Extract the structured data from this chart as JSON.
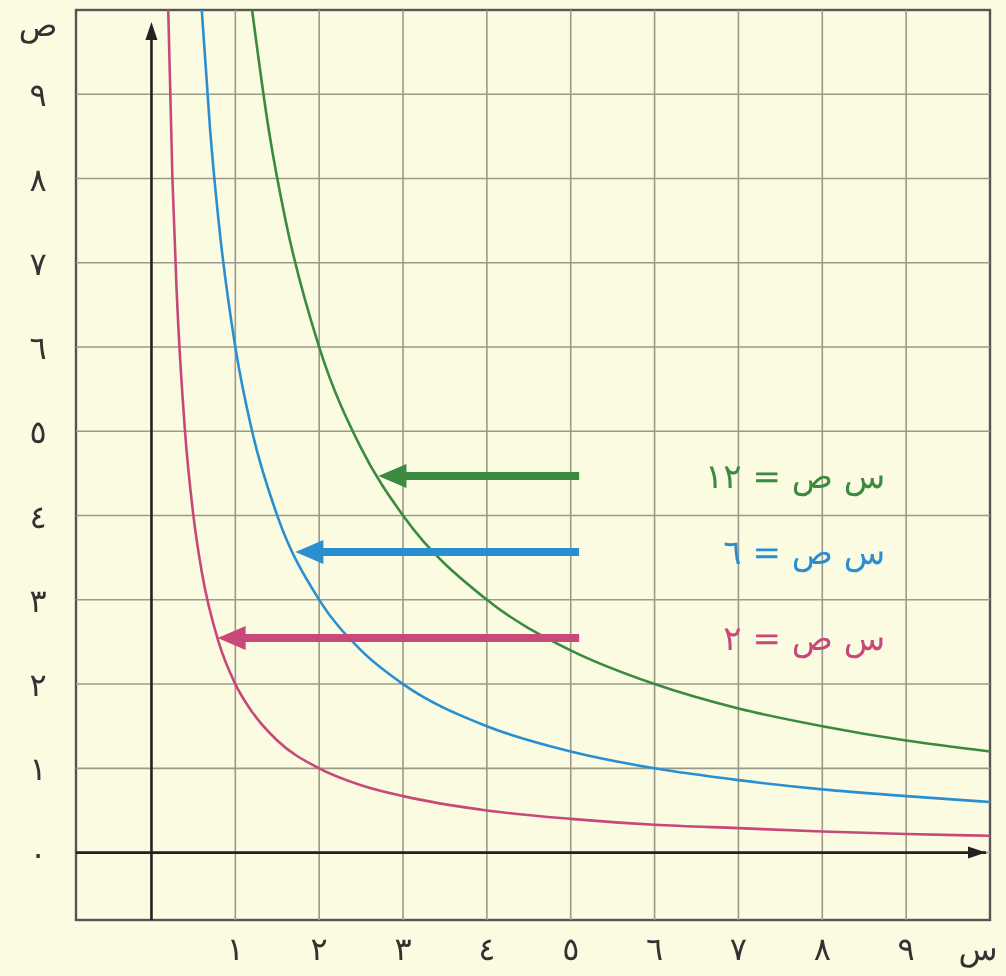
{
  "chart_data": {
    "type": "line",
    "xlabel": "س",
    "ylabel": "ص",
    "xlim": [
      -0.9,
      10
    ],
    "ylim": [
      -0.8,
      10
    ],
    "xticks": [
      {
        "value": 1,
        "label": "١"
      },
      {
        "value": 2,
        "label": "٢"
      },
      {
        "value": 3,
        "label": "٣"
      },
      {
        "value": 4,
        "label": "٤"
      },
      {
        "value": 5,
        "label": "٥"
      },
      {
        "value": 6,
        "label": "٦"
      },
      {
        "value": 7,
        "label": "٧"
      },
      {
        "value": 8,
        "label": "٨"
      },
      {
        "value": 9,
        "label": "٩"
      }
    ],
    "yticks": [
      {
        "value": 0,
        "label": "٠"
      },
      {
        "value": 1,
        "label": "١"
      },
      {
        "value": 2,
        "label": "٢"
      },
      {
        "value": 3,
        "label": "٣"
      },
      {
        "value": 4,
        "label": "٤"
      },
      {
        "value": 5,
        "label": "٥"
      },
      {
        "value": 6,
        "label": "٦"
      },
      {
        "value": 7,
        "label": "٧"
      },
      {
        "value": 8,
        "label": "٨"
      },
      {
        "value": 9,
        "label": "٩"
      }
    ],
    "grid": true,
    "marker": "none",
    "line_style": "solid",
    "series": [
      {
        "color": "#c8487a",
        "x": [
          0.2,
          0.25,
          0.3,
          0.4,
          0.5,
          0.6,
          0.8,
          1,
          1.2,
          1.5,
          2,
          2.5,
          3,
          4,
          5,
          6,
          7,
          8,
          9,
          10
        ],
        "values": [
          10,
          8,
          6.67,
          5,
          4,
          3.33,
          2.5,
          2,
          1.67,
          1.33,
          1,
          0.8,
          0.67,
          0.5,
          0.4,
          0.33,
          0.29,
          0.25,
          0.22,
          0.2
        ]
      },
      {
        "color": "#2a8fd0",
        "x": [
          0.6,
          0.7,
          0.8,
          1,
          1.2,
          1.5,
          2,
          2.5,
          3,
          4,
          5,
          6,
          7,
          8,
          9,
          10
        ],
        "values": [
          10,
          8.57,
          7.5,
          6,
          5,
          4,
          3,
          2.4,
          2,
          1.5,
          1.2,
          1,
          0.86,
          0.75,
          0.67,
          0.6
        ]
      },
      {
        "color": "#3a8a40",
        "x": [
          1.2,
          1.4,
          1.6,
          2,
          2.5,
          3,
          4,
          5,
          6,
          7,
          8,
          9,
          10
        ],
        "values": [
          10,
          8.57,
          7.5,
          6,
          4.8,
          4,
          3,
          2.4,
          2,
          1.71,
          1.5,
          1.33,
          1.2
        ]
      }
    ],
    "annotations": [
      "س ص = ٢",
      "س ص = ٦",
      "س ص = ١٢"
    ]
  }
}
